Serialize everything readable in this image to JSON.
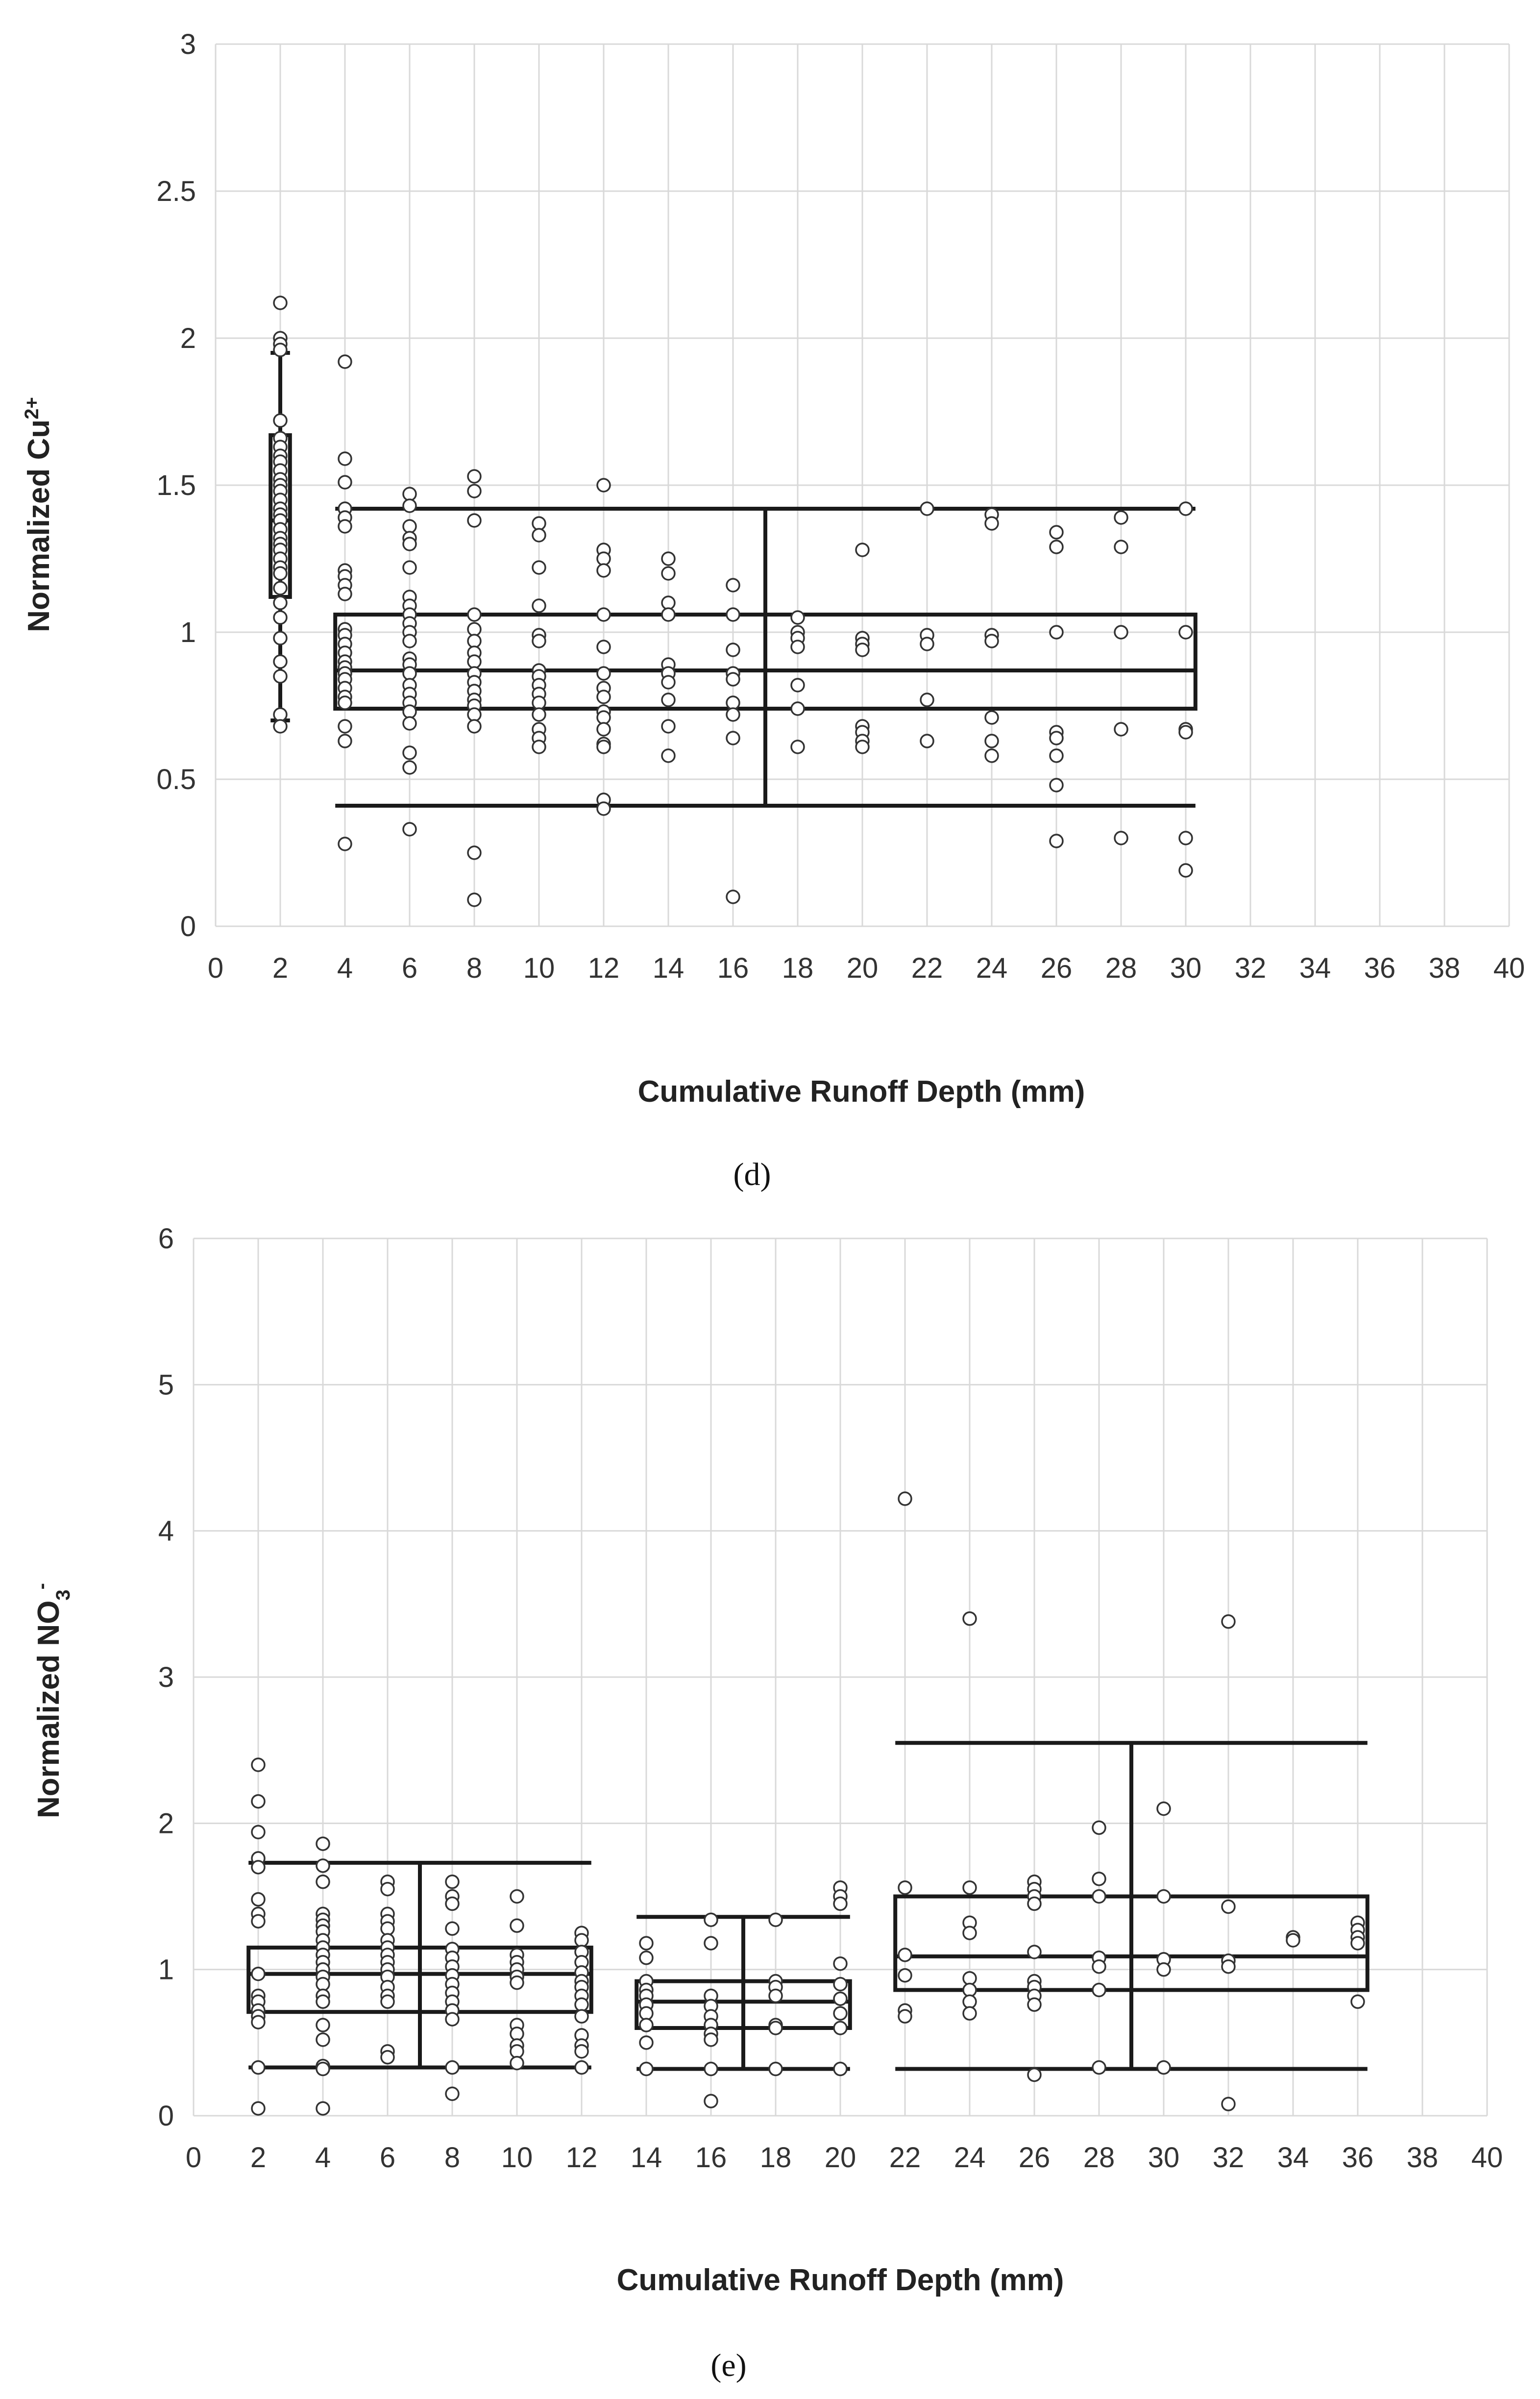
{
  "chart_data": [
    {
      "type": "box",
      "panel_label": "(d)",
      "xlabel": "Cumulative Runoff Depth (mm)",
      "ylabel": "Normalized Cu",
      "ylabel_sup": "2+",
      "xlim": [
        0,
        40
      ],
      "ylim": [
        0,
        3
      ],
      "xticks": [
        0,
        2,
        4,
        6,
        8,
        10,
        12,
        14,
        16,
        18,
        20,
        22,
        24,
        26,
        28,
        30,
        32,
        34,
        36,
        38,
        40
      ],
      "yticks": [
        0,
        0.5,
        1,
        1.5,
        2,
        2.5,
        3
      ],
      "boxes": [
        {
          "name": "2 mm",
          "x_start": 1.7,
          "x_end": 2.3,
          "whisker_x": 2,
          "q1": 1.12,
          "median": 1.38,
          "q3": 1.67,
          "whisker_low": 0.7,
          "whisker_high": 1.95
        },
        {
          "name": "4-30 mm",
          "x_start": 3.7,
          "x_end": 30.3,
          "whisker_x": 17,
          "q1": 0.74,
          "median": 0.87,
          "q3": 1.06,
          "whisker_low": 0.41,
          "whisker_high": 1.42
        }
      ],
      "points": [
        {
          "x": 2,
          "y": [
            2.12,
            2.0,
            1.98,
            1.96,
            1.72,
            1.66,
            1.63,
            1.6,
            1.58,
            1.55,
            1.52,
            1.5,
            1.48,
            1.45,
            1.42,
            1.4,
            1.38,
            1.35,
            1.32,
            1.3,
            1.28,
            1.25,
            1.22,
            1.2,
            1.15,
            1.1,
            1.05,
            0.98,
            0.9,
            0.85,
            0.72,
            0.68
          ]
        },
        {
          "x": 4,
          "y": [
            1.92,
            1.59,
            1.51,
            1.42,
            1.39,
            1.36,
            1.21,
            1.19,
            1.16,
            1.13,
            1.01,
            0.99,
            0.96,
            0.93,
            0.9,
            0.88,
            0.86,
            0.84,
            0.81,
            0.78,
            0.76,
            0.68,
            0.63,
            0.28
          ]
        },
        {
          "x": 6,
          "y": [
            1.47,
            1.43,
            1.36,
            1.32,
            1.3,
            1.22,
            1.12,
            1.09,
            1.06,
            1.03,
            1.0,
            0.97,
            0.91,
            0.89,
            0.86,
            0.82,
            0.79,
            0.76,
            0.73,
            0.69,
            0.59,
            0.54,
            0.33
          ]
        },
        {
          "x": 8,
          "y": [
            1.53,
            1.48,
            1.38,
            1.06,
            1.01,
            0.97,
            0.93,
            0.9,
            0.86,
            0.83,
            0.8,
            0.77,
            0.75,
            0.72,
            0.68,
            0.25,
            0.09
          ]
        },
        {
          "x": 10,
          "y": [
            1.37,
            1.33,
            1.22,
            1.09,
            0.99,
            0.97,
            0.87,
            0.85,
            0.82,
            0.79,
            0.76,
            0.72,
            0.67,
            0.64,
            0.61
          ]
        },
        {
          "x": 12,
          "y": [
            1.5,
            1.28,
            1.25,
            1.21,
            1.06,
            0.95,
            0.86,
            0.81,
            0.78,
            0.73,
            0.71,
            0.67,
            0.62,
            0.61,
            0.43,
            0.4
          ]
        },
        {
          "x": 14,
          "y": [
            1.25,
            1.2,
            1.1,
            1.06,
            0.89,
            0.86,
            0.83,
            0.77,
            0.68,
            0.58
          ]
        },
        {
          "x": 16,
          "y": [
            1.16,
            1.06,
            0.94,
            0.86,
            0.84,
            0.76,
            0.72,
            0.64,
            0.1
          ]
        },
        {
          "x": 18,
          "y": [
            1.05,
            1.0,
            0.98,
            0.95,
            0.82,
            0.74,
            0.61
          ]
        },
        {
          "x": 20,
          "y": [
            1.28,
            0.98,
            0.96,
            0.94,
            0.68,
            0.66,
            0.63,
            0.61
          ]
        },
        {
          "x": 22,
          "y": [
            1.42,
            0.99,
            0.96,
            0.77,
            0.63
          ]
        },
        {
          "x": 24,
          "y": [
            1.4,
            1.37,
            0.99,
            0.97,
            0.71,
            0.63,
            0.58
          ]
        },
        {
          "x": 26,
          "y": [
            1.34,
            1.29,
            1.0,
            0.66,
            0.64,
            0.58,
            0.48,
            0.29
          ]
        },
        {
          "x": 28,
          "y": [
            1.39,
            1.29,
            1.0,
            0.67,
            0.3
          ]
        },
        {
          "x": 30,
          "y": [
            1.42,
            1.0,
            0.67,
            0.66,
            0.3,
            0.19
          ]
        }
      ]
    },
    {
      "type": "box",
      "panel_label": "(e)",
      "xlabel": "Cumulative Runoff Depth (mm)",
      "ylabel": "Normalized NO",
      "ylabel_sub": "3",
      "ylabel_sup": "-",
      "xlim": [
        0,
        40
      ],
      "ylim": [
        0,
        6
      ],
      "xticks": [
        0,
        2,
        4,
        6,
        8,
        10,
        12,
        14,
        16,
        18,
        20,
        22,
        24,
        26,
        28,
        30,
        32,
        34,
        36,
        38,
        40
      ],
      "yticks": [
        0,
        1,
        2,
        3,
        4,
        5,
        6
      ],
      "boxes": [
        {
          "name": "2-12 mm",
          "x_start": 1.7,
          "x_end": 12.3,
          "whisker_x": 7,
          "q1": 0.71,
          "median": 0.97,
          "q3": 1.15,
          "whisker_low": 0.33,
          "whisker_high": 1.73
        },
        {
          "name": "14-20 mm",
          "x_start": 13.7,
          "x_end": 20.3,
          "whisker_x": 17,
          "q1": 0.6,
          "median": 0.78,
          "q3": 0.92,
          "whisker_low": 0.32,
          "whisker_high": 1.36
        },
        {
          "name": "22-36 mm",
          "x_start": 21.7,
          "x_end": 36.3,
          "whisker_x": 29,
          "q1": 0.86,
          "median": 1.09,
          "q3": 1.5,
          "whisker_low": 0.32,
          "whisker_high": 2.55
        }
      ],
      "points": [
        {
          "x": 2,
          "y": [
            2.4,
            2.15,
            1.94,
            1.76,
            1.7,
            1.48,
            1.38,
            1.33,
            0.97,
            0.82,
            0.78,
            0.72,
            0.68,
            0.64,
            0.33,
            0.05
          ]
        },
        {
          "x": 4,
          "y": [
            1.86,
            1.71,
            1.6,
            1.38,
            1.34,
            1.3,
            1.26,
            1.2,
            1.15,
            1.1,
            1.05,
            1.0,
            0.95,
            0.9,
            0.82,
            0.78,
            0.62,
            0.52,
            0.34,
            0.32,
            0.05
          ]
        },
        {
          "x": 6,
          "y": [
            1.6,
            1.55,
            1.38,
            1.33,
            1.28,
            1.2,
            1.15,
            1.1,
            1.05,
            1.0,
            0.95,
            0.88,
            0.82,
            0.78,
            0.44,
            0.4
          ]
        },
        {
          "x": 8,
          "y": [
            1.6,
            1.5,
            1.45,
            1.28,
            1.14,
            1.08,
            1.02,
            0.96,
            0.9,
            0.84,
            0.78,
            0.72,
            0.66,
            0.33,
            0.15
          ]
        },
        {
          "x": 10,
          "y": [
            1.5,
            1.3,
            1.1,
            1.05,
            1.0,
            0.95,
            0.91,
            0.62,
            0.56,
            0.48,
            0.44,
            0.36
          ]
        },
        {
          "x": 12,
          "y": [
            1.25,
            1.2,
            1.12,
            1.05,
            0.98,
            0.92,
            0.88,
            0.82,
            0.76,
            0.68,
            0.55,
            0.48,
            0.44,
            0.33
          ]
        },
        {
          "x": 14,
          "y": [
            1.18,
            1.08,
            0.92,
            0.86,
            0.82,
            0.76,
            0.7,
            0.62,
            0.5,
            0.32
          ]
        },
        {
          "x": 16,
          "y": [
            1.34,
            1.18,
            0.82,
            0.75,
            0.68,
            0.62,
            0.56,
            0.52,
            0.32,
            0.1
          ]
        },
        {
          "x": 18,
          "y": [
            1.34,
            0.92,
            0.88,
            0.82,
            0.62,
            0.6,
            0.32
          ]
        },
        {
          "x": 20,
          "y": [
            1.56,
            1.5,
            1.45,
            1.04,
            0.9,
            0.8,
            0.7,
            0.6,
            0.32
          ]
        },
        {
          "x": 22,
          "y": [
            4.22,
            1.56,
            1.1,
            0.96,
            0.72,
            0.68
          ]
        },
        {
          "x": 24,
          "y": [
            3.4,
            1.56,
            1.32,
            1.25,
            0.94,
            0.86,
            0.78,
            0.7
          ]
        },
        {
          "x": 26,
          "y": [
            1.6,
            1.55,
            1.5,
            1.45,
            1.12,
            0.92,
            0.88,
            0.82,
            0.76,
            0.28
          ]
        },
        {
          "x": 28,
          "y": [
            1.97,
            1.62,
            1.5,
            1.08,
            1.02,
            0.86,
            0.33
          ]
        },
        {
          "x": 30,
          "y": [
            2.1,
            1.5,
            1.07,
            1.0,
            0.33
          ]
        },
        {
          "x": 32,
          "y": [
            3.38,
            1.43,
            1.06,
            1.02,
            0.08
          ]
        },
        {
          "x": 34,
          "y": [
            1.22,
            1.2
          ]
        },
        {
          "x": 36,
          "y": [
            1.32,
            1.27,
            1.22,
            1.18,
            0.78
          ]
        }
      ]
    }
  ]
}
